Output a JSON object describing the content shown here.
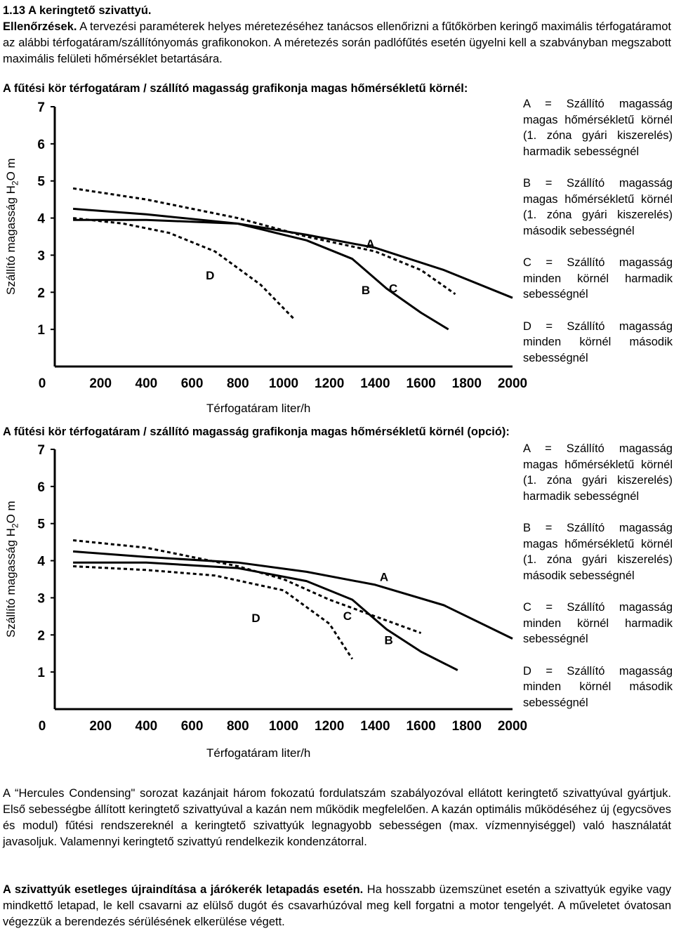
{
  "section": {
    "title": "1.13 A keringtető szivattyú.",
    "check_label": "Ellenőrzések.",
    "check_text": " A tervezési paraméterek helyes méretezéséhez tanácsos ellenőrizni a fűtőkörben keringő maximális térfogatáramot az alábbi térfogatáram/szállítónyomás grafikonokon. A méretezés során padlófűtés esetén ügyelni kell a szabványban megszabott maximális felületi hőmérséklet betartására."
  },
  "charts_text": [
    {
      "title": "A fűtési kör térfogatáram / szállító magasság grafikonja magas hőmérsékletű körnél:",
      "ylabel_pre": "Szállító magasság H",
      "ylabel_sub": "2",
      "ylabel_post": "O m",
      "xlabel": "Térfogatáram liter/h",
      "legend": [
        "A = Szállító magasság magas hőmérsékletű körnél (1. zóna gyári kiszerelés) harmadik sebességnél",
        "B = Szállító magasság magas hőmérsékletű körnél (1. zóna gyári kiszerelés) második sebességnél",
        "C = Szállító magasság minden körnél harmadik sebességnél",
        "D = Szállító magasság minden körnél második sebességnél"
      ]
    },
    {
      "title": "A fűtési kör térfogatáram / szállító magasság grafikonja magas hőmérsékletű körnél (opció):",
      "ylabel_pre": "Szállító magasság H",
      "ylabel_sub": "2",
      "ylabel_post": "O m",
      "xlabel": "Térfogatáram liter/h",
      "legend": [
        "A = Szállító magasság magas hőmérsékletű körnél (1. zóna gyári kiszerelés) harmadik sebességnél",
        "B = Szállító magasság magas hőmérsékletű körnél (1. zóna gyári kiszerelés) második sebességnél",
        "C = Szállító magasság minden körnél harmadik sebességnél",
        "D = Szállító magasság minden körnél második sebességnél"
      ]
    }
  ],
  "chart_data": [
    {
      "type": "line",
      "xlim": [
        0,
        2000
      ],
      "ylim": [
        0,
        7
      ],
      "x_ticks": [
        "0",
        "200",
        "400",
        "600",
        "800",
        "1000",
        "1200",
        "1400",
        "1600",
        "1800",
        "2000"
      ],
      "y_ticks": [
        "1",
        "2",
        "3",
        "4",
        "5",
        "6",
        "7"
      ],
      "grid": false,
      "series": [
        {
          "name": "A",
          "style": "solid",
          "x": [
            80,
            400,
            800,
            1100,
            1400,
            1700,
            2000
          ],
          "y": [
            4.25,
            4.1,
            3.85,
            3.55,
            3.2,
            2.6,
            1.85
          ]
        },
        {
          "name": "B",
          "style": "solid",
          "x": [
            80,
            400,
            800,
            1100,
            1300,
            1450,
            1600,
            1720
          ],
          "y": [
            3.95,
            3.95,
            3.85,
            3.4,
            2.9,
            2.1,
            1.45,
            1.0
          ]
        },
        {
          "name": "C",
          "style": "dashed",
          "x": [
            80,
            400,
            800,
            1100,
            1400,
            1600,
            1750
          ],
          "y": [
            4.8,
            4.5,
            4.0,
            3.5,
            3.1,
            2.6,
            1.95
          ]
        },
        {
          "name": "D",
          "style": "dashed",
          "x": [
            80,
            300,
            500,
            700,
            900,
            1050
          ],
          "y": [
            4.0,
            3.85,
            3.6,
            3.1,
            2.2,
            1.25
          ]
        }
      ]
    },
    {
      "type": "line",
      "xlim": [
        0,
        2000
      ],
      "ylim": [
        0,
        7
      ],
      "x_ticks": [
        "0",
        "200",
        "400",
        "600",
        "800",
        "1000",
        "1200",
        "1400",
        "1600",
        "1800",
        "2000"
      ],
      "y_ticks": [
        "1",
        "2",
        "3",
        "4",
        "5",
        "6",
        "7"
      ],
      "grid": false,
      "series": [
        {
          "name": "A",
          "style": "solid",
          "x": [
            80,
            400,
            800,
            1100,
            1400,
            1700,
            2000
          ],
          "y": [
            4.25,
            4.1,
            3.95,
            3.7,
            3.35,
            2.8,
            1.9
          ]
        },
        {
          "name": "B",
          "style": "solid",
          "x": [
            80,
            400,
            800,
            1100,
            1300,
            1450,
            1600,
            1760
          ],
          "y": [
            3.95,
            3.95,
            3.8,
            3.45,
            2.95,
            2.15,
            1.55,
            1.05
          ]
        },
        {
          "name": "C",
          "style": "dashed",
          "x": [
            80,
            400,
            800,
            1000,
            1200,
            1400,
            1600
          ],
          "y": [
            4.55,
            4.35,
            3.85,
            3.5,
            2.95,
            2.5,
            2.05
          ]
        },
        {
          "name": "D",
          "style": "dashed",
          "x": [
            80,
            400,
            700,
            1000,
            1200,
            1300
          ],
          "y": [
            3.85,
            3.75,
            3.6,
            3.2,
            2.3,
            1.35
          ]
        }
      ]
    }
  ],
  "footer": {
    "p1": "A “Hercules Condensing\" sorozat kazánjait három fokozatú fordulatszám szabályozóval ellátott keringtető szivattyúval gyártjuk. Első sebességbe állított keringtető szivattyúval a kazán nem működik megfelelően. A kazán optimális működéséhez új (egycsöves és modul) fűtési rendszereknél a keringtető szivattyúk legnagyobb sebességen (max. vízmennyiséggel) való használatát javasoljuk. Valamennyi keringtető szivattyú rendelkezik kondenzátorral.",
    "p2_bold": "A szivattyúk esetleges újraindítása a járókerék letapadás esetén.",
    "p2_text": " Ha hosszabb üzemszünet esetén a szivattyúk egyike vagy mindkettő letapad, le kell csavarni az elülső dugót és csavarhúzóval meg kell forgatni a motor tengelyét. A műveletet óvatosan végezzük a berendezés sérülésének elkerülése végett."
  }
}
